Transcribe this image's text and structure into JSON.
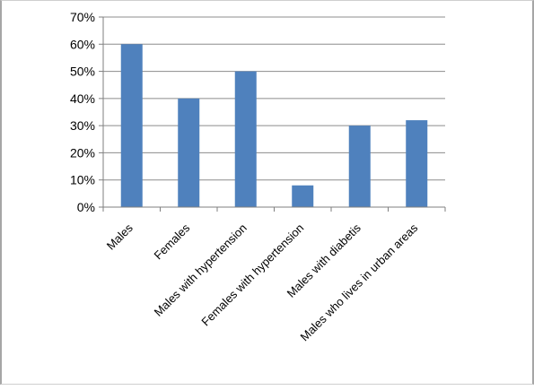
{
  "chart_data": {
    "type": "bar",
    "title": "",
    "xlabel": "",
    "ylabel": "",
    "categories": [
      "Males",
      "Females",
      "Males with hypertension",
      "Females with hypertension",
      "Males with diabetis",
      "Males who lives in urban areas"
    ],
    "values": [
      60,
      40,
      50,
      8,
      30,
      32
    ],
    "ylim": [
      0,
      70
    ],
    "yticks": [
      "0%",
      "10%",
      "20%",
      "30%",
      "40%",
      "50%",
      "60%",
      "70%"
    ],
    "grid": true,
    "legend": "none",
    "colors": {
      "bar": "#4f81bd",
      "grid": "#8c8c8c",
      "axis": "#7f7f7f"
    }
  }
}
